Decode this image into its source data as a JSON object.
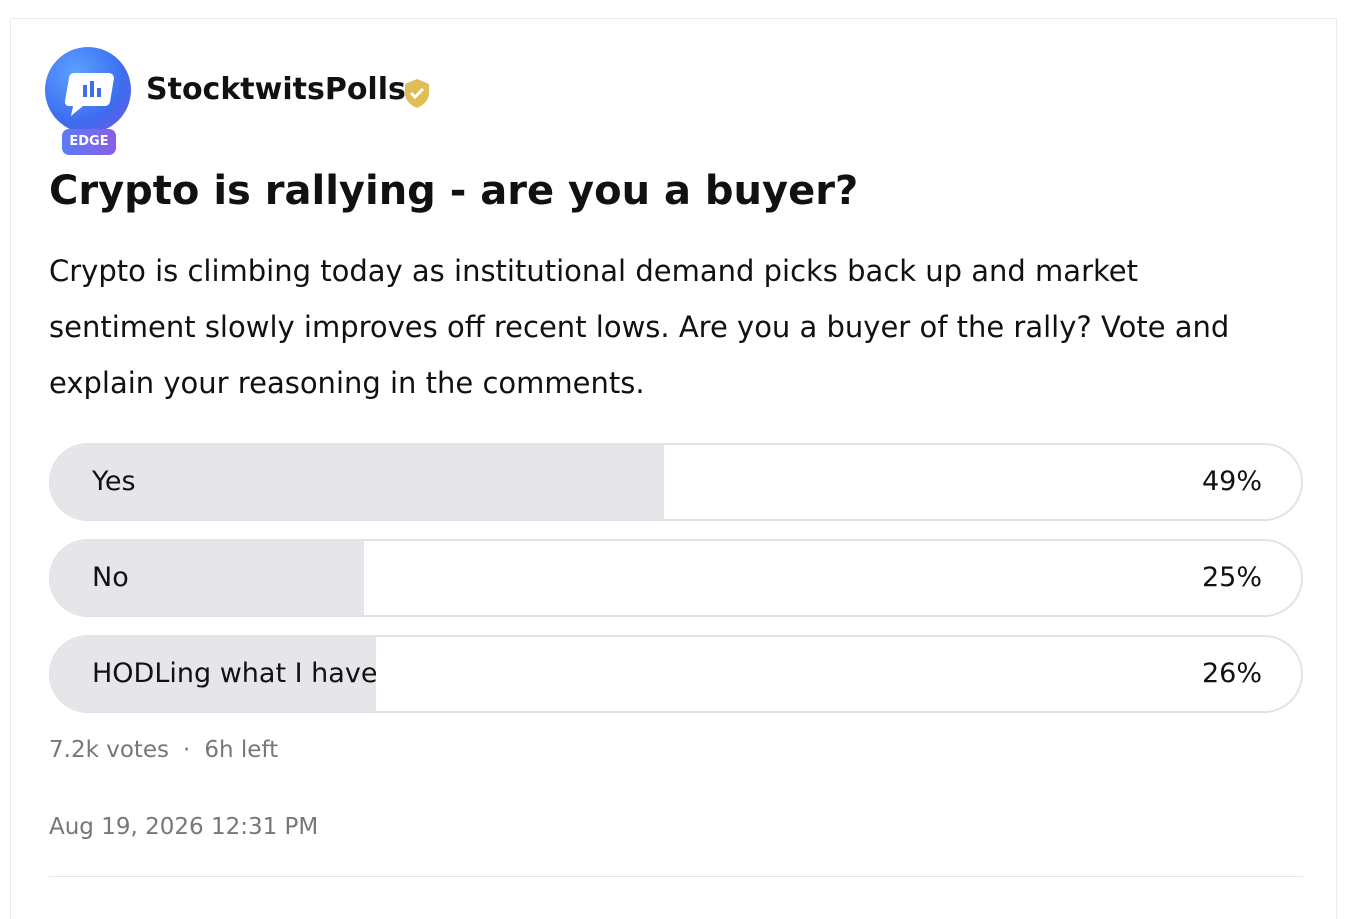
{
  "post": {
    "author": "StocktwitsPolls",
    "badge": "EDGE",
    "title": "Crypto is rallying - are you a buyer?",
    "body": "Crypto is climbing today as institutional demand picks back up and market sentiment slowly improves off recent lows. Are you a buyer of the rally? Vote and explain your reasoning in the comments.",
    "poll": {
      "options": [
        {
          "label": "Yes",
          "value": 49,
          "value_label": "49%"
        },
        {
          "label": "No",
          "value": 25,
          "value_label": "25%"
        },
        {
          "label": "HODLing what I have",
          "value": 26,
          "value_label": "26%"
        }
      ],
      "votes": "7.2k votes",
      "time_left": "6h left"
    },
    "timestamp": "Aug 19, 2026 12:31 PM"
  }
}
